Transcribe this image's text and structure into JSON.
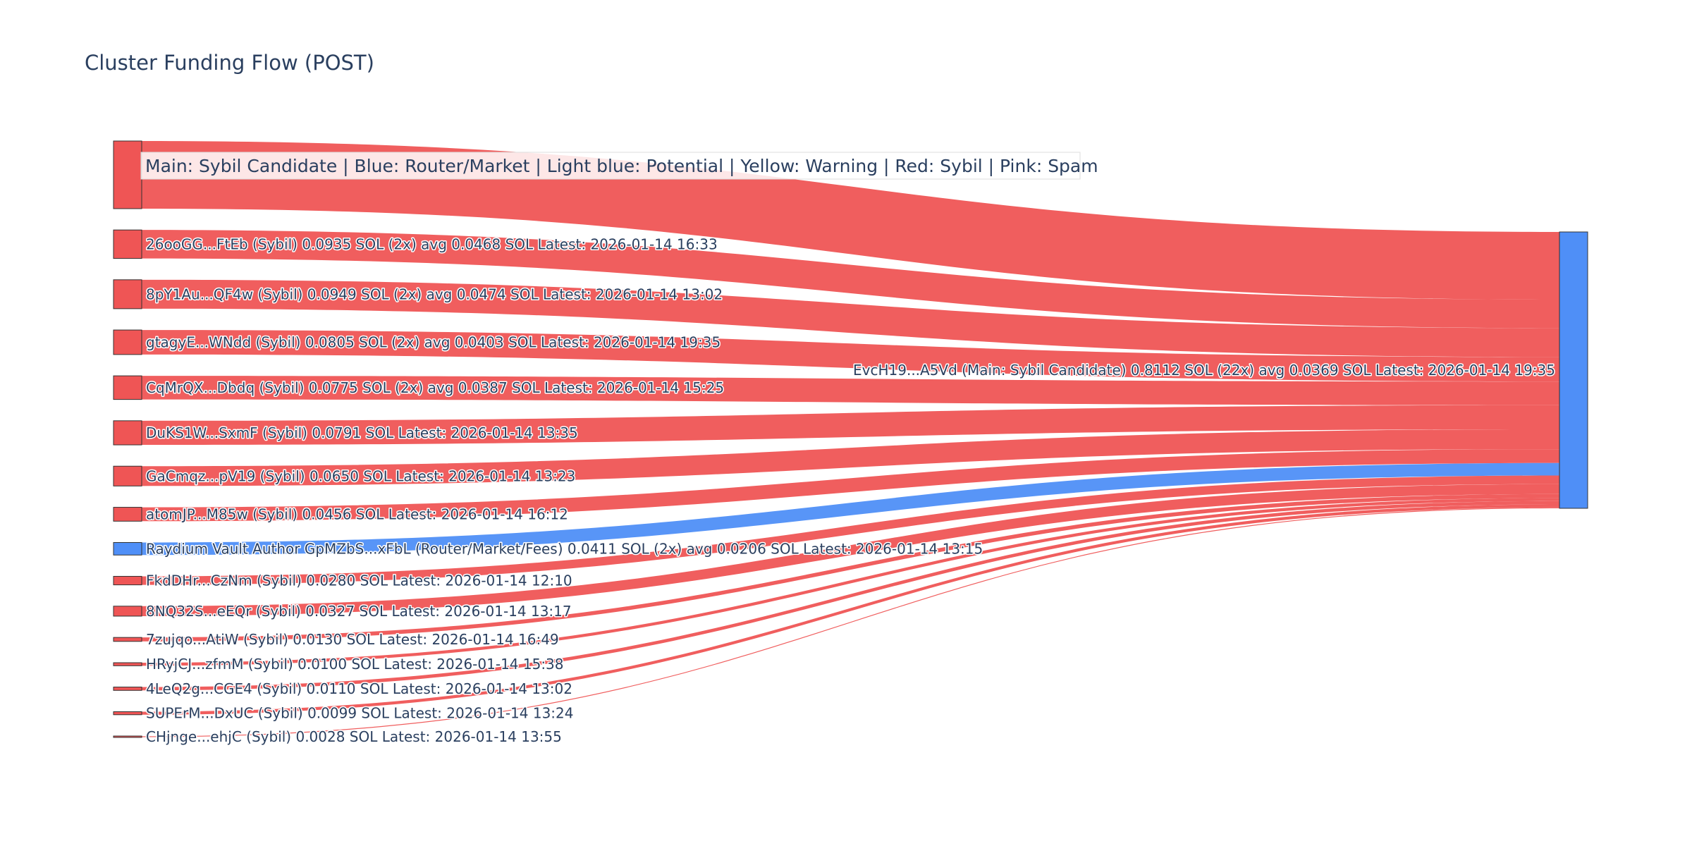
{
  "title": "Cluster Funding Flow (POST)",
  "legend_note": "Main: Sybil Candidate  |  Blue: Router/Market | Light blue: Potential | Yellow: Warning | Red: Sybil | Pink: Spam",
  "colors": {
    "sybil": "#ef5555",
    "router": "#4f8ff7",
    "node_border": "#333333"
  },
  "chart_data": {
    "type": "sankey",
    "target": {
      "label": "EvcH19...A5Vd (Main: Sybil Candidate) 0.8112 SOL (22x) avg 0.0369 SOL Latest: 2026-01-14 19:35",
      "value": 0.8112,
      "color": "#4f8ff7"
    },
    "sources": [
      {
        "label": "",
        "value": 0.2219,
        "category": "sybil",
        "color": "#ef5555"
      },
      {
        "label": "26ooGG...FtEb (Sybil) 0.0935 SOL (2x) avg 0.0468 SOL Latest: 2026-01-14 16:33",
        "value": 0.0935,
        "category": "sybil",
        "color": "#ef5555"
      },
      {
        "label": "8pY1Au...QF4w (Sybil) 0.0949 SOL (2x) avg 0.0474 SOL Latest: 2026-01-14 13:02",
        "value": 0.0949,
        "category": "sybil",
        "color": "#ef5555"
      },
      {
        "label": "gtagyE...WNdd (Sybil) 0.0805 SOL (2x) avg 0.0403 SOL Latest: 2026-01-14 19:35",
        "value": 0.0805,
        "category": "sybil",
        "color": "#ef5555"
      },
      {
        "label": "CqMrQX...Dbdq (Sybil) 0.0775 SOL (2x) avg 0.0387 SOL Latest: 2026-01-14 15:25",
        "value": 0.0775,
        "category": "sybil",
        "color": "#ef5555"
      },
      {
        "label": "DuKS1W...SxmF (Sybil) 0.0791 SOL Latest: 2026-01-14 13:35",
        "value": 0.0791,
        "category": "sybil",
        "color": "#ef5555"
      },
      {
        "label": "GaCmqz...pV19 (Sybil) 0.0650 SOL Latest: 2026-01-14 13:23",
        "value": 0.065,
        "category": "sybil",
        "color": "#ef5555"
      },
      {
        "label": "atomJP...M85w (Sybil) 0.0456 SOL Latest: 2026-01-14 16:12",
        "value": 0.0456,
        "category": "sybil",
        "color": "#ef5555"
      },
      {
        "label": "Raydium Vault Author GpMZbS...xFbL (Router/Market/Fees) 0.0411 SOL (2x) avg 0.0206 SOL Latest: 2026-01-14 13:15",
        "value": 0.0411,
        "category": "router",
        "color": "#4f8ff7"
      },
      {
        "label": "FkdDHr...CzNm (Sybil) 0.0280 SOL Latest: 2026-01-14 12:10",
        "value": 0.028,
        "category": "sybil",
        "color": "#ef5555"
      },
      {
        "label": "8NQ32S...eEQr (Sybil) 0.0327 SOL Latest: 2026-01-14 13:17",
        "value": 0.0327,
        "category": "sybil",
        "color": "#ef5555"
      },
      {
        "label": "7zujqo...AtiW (Sybil) 0.0130 SOL Latest: 2026-01-14 16:49",
        "value": 0.013,
        "category": "sybil",
        "color": "#ef5555"
      },
      {
        "label": "HRyjCJ...zfmM (Sybil) 0.0100 SOL Latest: 2026-01-14 15:38",
        "value": 0.01,
        "category": "sybil",
        "color": "#ef5555"
      },
      {
        "label": "4LeQ2g...CGE4 (Sybil) 0.0110 SOL Latest: 2026-01-14 13:02",
        "value": 0.011,
        "category": "sybil",
        "color": "#ef5555"
      },
      {
        "label": "SUPErM...DxUC (Sybil) 0.0099 SOL Latest: 2026-01-14 13:24",
        "value": 0.0099,
        "category": "sybil",
        "color": "#ef5555"
      },
      {
        "label": "CHjnge...ehjC (Sybil) 0.0028 SOL Latest: 2026-01-14 13:55",
        "value": 0.0028,
        "category": "sybil",
        "color": "#ef5555"
      }
    ]
  }
}
